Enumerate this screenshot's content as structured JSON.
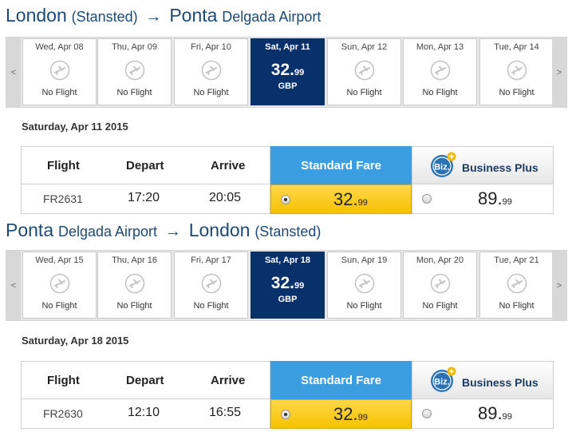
{
  "outbound": {
    "route": {
      "from_city": "London",
      "from_sub": "(Stansted)",
      "arrow": "→",
      "to_city": "Ponta",
      "to_sub": "Delgada Airport"
    },
    "nav": {
      "prev": "<",
      "next": ">"
    },
    "days": [
      {
        "label": "Wed, Apr 08",
        "status": "No Flight"
      },
      {
        "label": "Thu, Apr 09",
        "status": "No Flight"
      },
      {
        "label": "Fri, Apr 10",
        "status": "No Flight"
      },
      {
        "label": "Sat, Apr 11",
        "price_main": "32.",
        "price_cents": "99",
        "currency": "GBP",
        "selected": true
      },
      {
        "label": "Sun, Apr 12",
        "status": "No Flight"
      },
      {
        "label": "Mon, Apr 13",
        "status": "No Flight"
      },
      {
        "label": "Tue, Apr 14",
        "status": "No Flight"
      }
    ],
    "full_date": "Saturday, Apr 11 2015",
    "headers": {
      "flight": "Flight",
      "depart": "Depart",
      "arrive": "Arrive",
      "standard": "Standard Fare",
      "biz_badge": "Biz.",
      "business": "Business Plus"
    },
    "flight": {
      "number": "FR2631",
      "depart": "17:20",
      "arrive": "20:05",
      "std_main": "32.",
      "std_cents": "99",
      "biz_main": "89.",
      "biz_cents": "99"
    }
  },
  "inbound": {
    "route": {
      "from_city": "Ponta",
      "from_sub": "Delgada Airport",
      "arrow": "→",
      "to_city": "London",
      "to_sub": "(Stansted)"
    },
    "nav": {
      "prev": "<",
      "next": ">"
    },
    "days": [
      {
        "label": "Wed, Apr 15",
        "status": "No Flight"
      },
      {
        "label": "Thu, Apr 16",
        "status": "No Flight"
      },
      {
        "label": "Fri, Apr 17",
        "status": "No Flight"
      },
      {
        "label": "Sat, Apr 18",
        "price_main": "32.",
        "price_cents": "99",
        "currency": "GBP",
        "selected": true
      },
      {
        "label": "Sun, Apr 19",
        "status": "No Flight"
      },
      {
        "label": "Mon, Apr 20",
        "status": "No Flight"
      },
      {
        "label": "Tue, Apr 21",
        "status": "No Flight"
      }
    ],
    "full_date": "Saturday, Apr 18 2015",
    "headers": {
      "flight": "Flight",
      "depart": "Depart",
      "arrive": "Arrive",
      "standard": "Standard Fare",
      "biz_badge": "Biz.",
      "business": "Business Plus"
    },
    "flight": {
      "number": "FR2630",
      "depart": "12:10",
      "arrive": "16:55",
      "std_main": "32.",
      "std_cents": "99",
      "biz_main": "89.",
      "biz_cents": "99"
    }
  },
  "colors": {
    "route_text": "#1b4a78",
    "selected_day": "#08306b",
    "standard_header": "#3b9ee0",
    "standard_fare": "#f6c200",
    "biz_badge": "#2a72b5",
    "biz_plus": "#f5b800"
  },
  "icons": {
    "day": "plane-icon",
    "biz": "biz-badge-icon"
  }
}
